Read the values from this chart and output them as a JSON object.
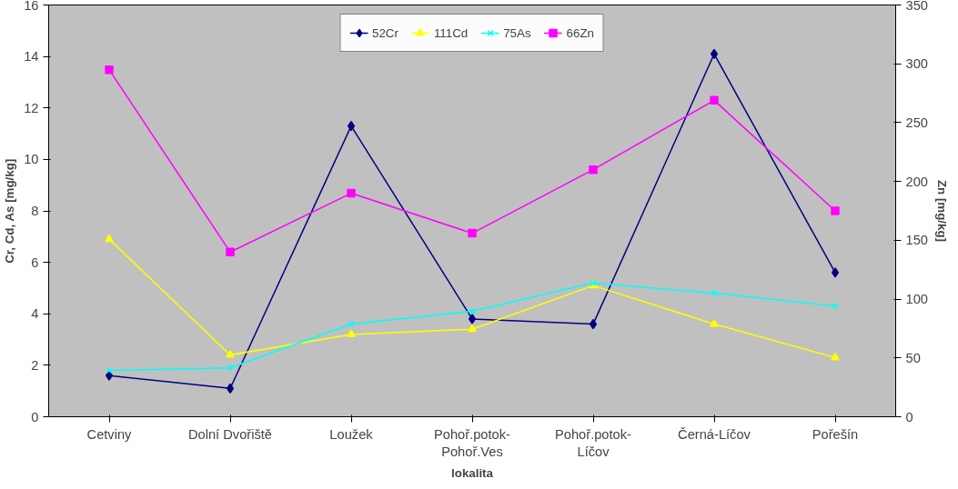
{
  "chart_data": {
    "type": "line",
    "xlabel": "lokalita",
    "ylabel": "Cr, Cd, As [mg/kg]",
    "y2label": "Zn [mg/kg]",
    "categories": [
      "Cetviny",
      "Dolní Dvořiště",
      "Loužek",
      "Pohoř.potok- Pohoř.Ves",
      "Pohoř.potok- Líčov",
      "Černá-Líčov",
      "Pořešín"
    ],
    "ylim": [
      0,
      16
    ],
    "yticks": [
      0,
      2,
      4,
      6,
      8,
      10,
      12,
      14,
      16
    ],
    "y2lim": [
      0,
      350
    ],
    "y2ticks": [
      0,
      50,
      100,
      150,
      200,
      250,
      300,
      350
    ],
    "grid": false,
    "legend": "top",
    "line_style": "solid",
    "series": [
      {
        "name": "52Cr",
        "color": "#000080",
        "marker": "diamond",
        "values": [
          1.6,
          1.1,
          11.3,
          3.8,
          3.6,
          14.1,
          5.6
        ]
      },
      {
        "name": "111Cd",
        "color": "#ffff00",
        "marker": "triangle",
        "values": [
          6.9,
          2.4,
          3.2,
          3.4,
          5.1,
          3.6,
          2.3
        ]
      },
      {
        "name": "75As",
        "color": "#00ffff",
        "marker": "cross",
        "values": [
          1.8,
          1.9,
          3.6,
          4.1,
          5.2,
          4.8,
          4.3
        ]
      },
      {
        "name": "66Zn",
        "color": "#ff00ff",
        "marker": "square",
        "axis": "y2",
        "values": [
          295,
          140,
          190,
          156,
          210,
          269,
          175
        ]
      }
    ]
  }
}
